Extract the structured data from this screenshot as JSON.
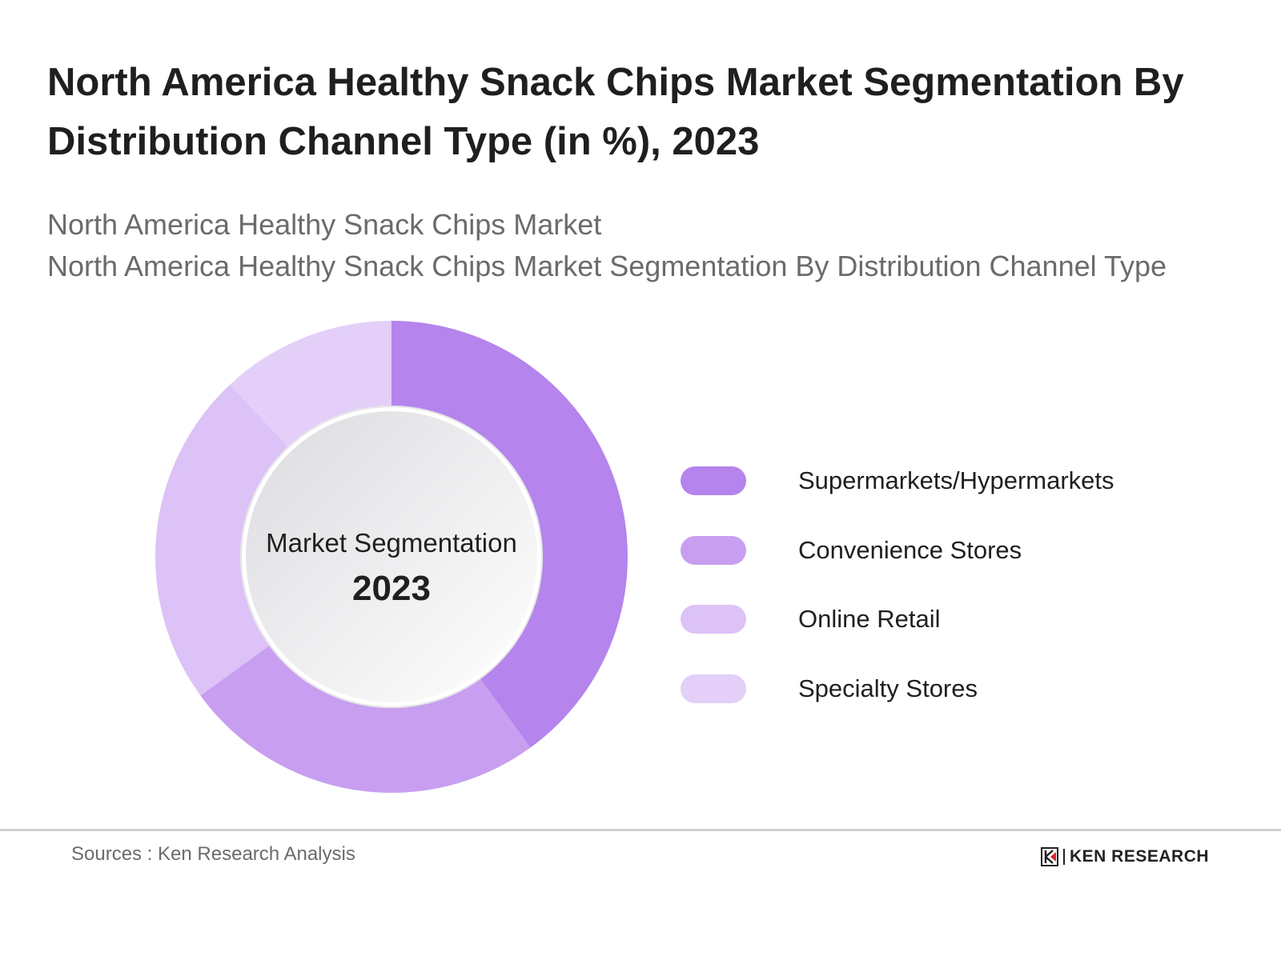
{
  "title": "North America Healthy Snack Chips Market Segmentation By Distribution Channel Type (in %), 2023",
  "subtitle_lines": [
    "North America Healthy Snack Chips Market",
    "North America Healthy Snack Chips Market Segmentation By Distribution Channel Type"
  ],
  "chart_data": {
    "type": "pie",
    "variant": "donut",
    "title": "North America Healthy Snack Chips Market Segmentation By Distribution Channel Type (in %), 2023",
    "center_label": "Market Segmentation",
    "center_value": "2023",
    "categories": [
      "Supermarkets/Hypermarkets",
      "Convenience Stores",
      "Online Retail",
      "Specialty Stores"
    ],
    "values": [
      40,
      25,
      23,
      12
    ],
    "colors": [
      "#b584ec",
      "#c89ff0",
      "#dcc2f6",
      "#e3cff8"
    ],
    "legend_position": "right"
  },
  "footer": {
    "sources": "Sources : Ken Research Analysis",
    "logo_text": "KEN RESEARCH"
  }
}
